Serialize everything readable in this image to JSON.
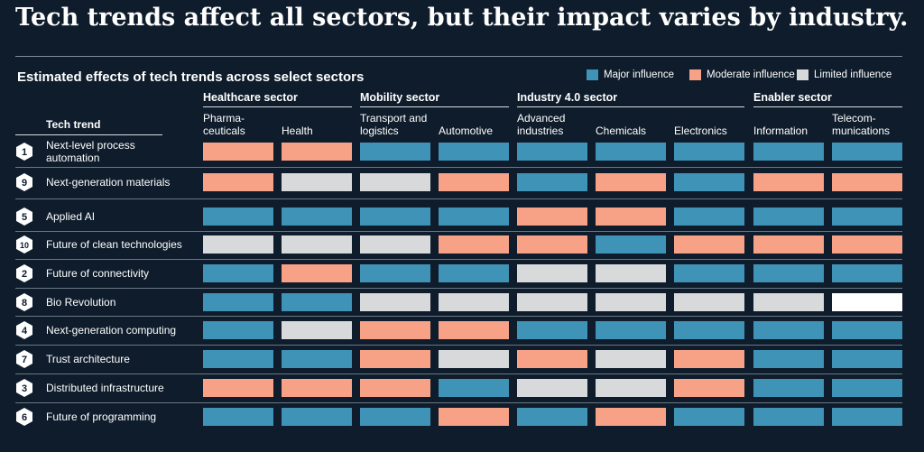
{
  "headline": "Tech trends affect all sectors, but their impact varies by industry.",
  "chart_data": {
    "type": "heatmap",
    "title": "Estimated effects of tech trends across select sectors",
    "row_header": "Tech trend",
    "legend": [
      {
        "name": "Major influence",
        "color": "#3e93b6"
      },
      {
        "name": "Moderate influence",
        "color": "#f7a286"
      },
      {
        "name": "Limited influence",
        "color": "#d7d9db"
      }
    ],
    "levels": {
      "major": "#3e93b6",
      "moderate": "#f7a286",
      "limited": "#d7d9db",
      "none": "#ffffff"
    },
    "sectors": [
      {
        "name": "Healthcare sector",
        "columns": [
          "Pharma- ceuticals",
          "Health"
        ]
      },
      {
        "name": "Mobility sector",
        "columns": [
          "Transport and logistics",
          "Automotive"
        ]
      },
      {
        "name": "Industry 4.0 sector",
        "columns": [
          "Advanced industries",
          "Chemicals",
          "Electronics"
        ]
      },
      {
        "name": "Enabler sector",
        "columns": [
          "Information",
          "Telecom- munications"
        ]
      }
    ],
    "columns": [
      "Pharma- ceuticals",
      "Health",
      "Transport and logistics",
      "Automotive",
      "Advanced industries",
      "Chemicals",
      "Electronics",
      "Information",
      "Telecom- munications"
    ],
    "rows": [
      {
        "rank": "1",
        "trend": "Next-level process automation",
        "values": [
          "moderate",
          "moderate",
          "major",
          "major",
          "major",
          "major",
          "major",
          "major",
          "major"
        ]
      },
      {
        "rank": "9",
        "trend": "Next-generation materials",
        "values": [
          "moderate",
          "limited",
          "limited",
          "moderate",
          "major",
          "moderate",
          "major",
          "moderate",
          "moderate"
        ]
      },
      {
        "rank": "5",
        "trend": "Applied AI",
        "values": [
          "major",
          "major",
          "major",
          "major",
          "moderate",
          "moderate",
          "major",
          "major",
          "major"
        ]
      },
      {
        "rank": "10",
        "trend": "Future of clean technologies",
        "values": [
          "limited",
          "limited",
          "limited",
          "moderate",
          "moderate",
          "major",
          "moderate",
          "moderate",
          "moderate"
        ]
      },
      {
        "rank": "2",
        "trend": "Future of connectivity",
        "values": [
          "major",
          "moderate",
          "major",
          "major",
          "limited",
          "limited",
          "major",
          "major",
          "major"
        ]
      },
      {
        "rank": "8",
        "trend": "Bio Revolution",
        "values": [
          "major",
          "major",
          "limited",
          "limited",
          "limited",
          "limited",
          "limited",
          "limited",
          "none"
        ]
      },
      {
        "rank": "4",
        "trend": "Next-generation computing",
        "values": [
          "major",
          "limited",
          "moderate",
          "moderate",
          "major",
          "major",
          "major",
          "major",
          "major"
        ]
      },
      {
        "rank": "7",
        "trend": "Trust architecture",
        "values": [
          "major",
          "major",
          "moderate",
          "limited",
          "moderate",
          "limited",
          "moderate",
          "major",
          "major"
        ]
      },
      {
        "rank": "3",
        "trend": "Distributed infrastructure",
        "values": [
          "moderate",
          "moderate",
          "moderate",
          "major",
          "limited",
          "limited",
          "moderate",
          "major",
          "major"
        ]
      },
      {
        "rank": "6",
        "trend": "Future of programming",
        "values": [
          "major",
          "major",
          "major",
          "moderate",
          "major",
          "moderate",
          "major",
          "major",
          "major"
        ]
      }
    ]
  }
}
